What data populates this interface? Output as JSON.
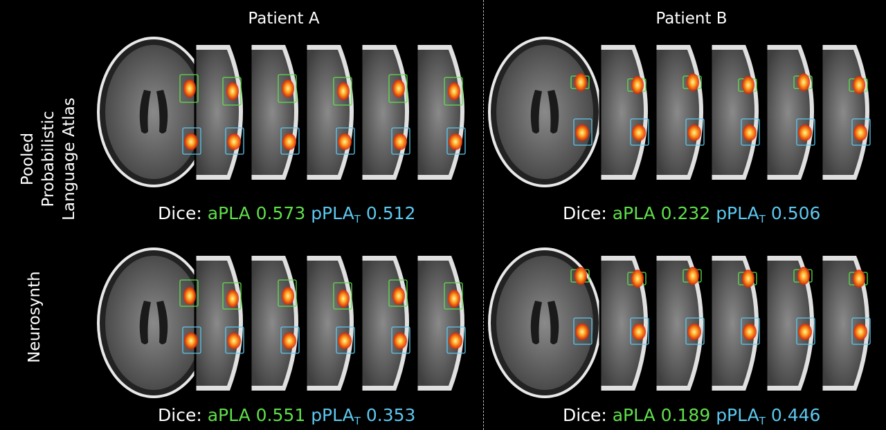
{
  "columns": {
    "patient_a": "Patient A",
    "patient_b": "Patient B"
  },
  "rows": {
    "row1_lines": [
      "Pooled",
      "Probabilistic",
      "Language Atlas"
    ],
    "row2": "Neurosynth"
  },
  "dice": {
    "prefix": "Dice:",
    "apla_label": "aPLA",
    "ppla_label": "pPLA",
    "ppla_subscript": "T",
    "a_top": {
      "apla": "0.573",
      "ppla": "0.512"
    },
    "b_top": {
      "apla": "0.232",
      "ppla": "0.506"
    },
    "a_bottom": {
      "apla": "0.551",
      "ppla": "0.353"
    },
    "b_bottom": {
      "apla": "0.189",
      "ppla": "0.446"
    }
  },
  "colors": {
    "background": "#000000",
    "apla_green": "#5fe04a",
    "ppla_cyan": "#5cc8f0",
    "activation": "#ff5a10"
  }
}
